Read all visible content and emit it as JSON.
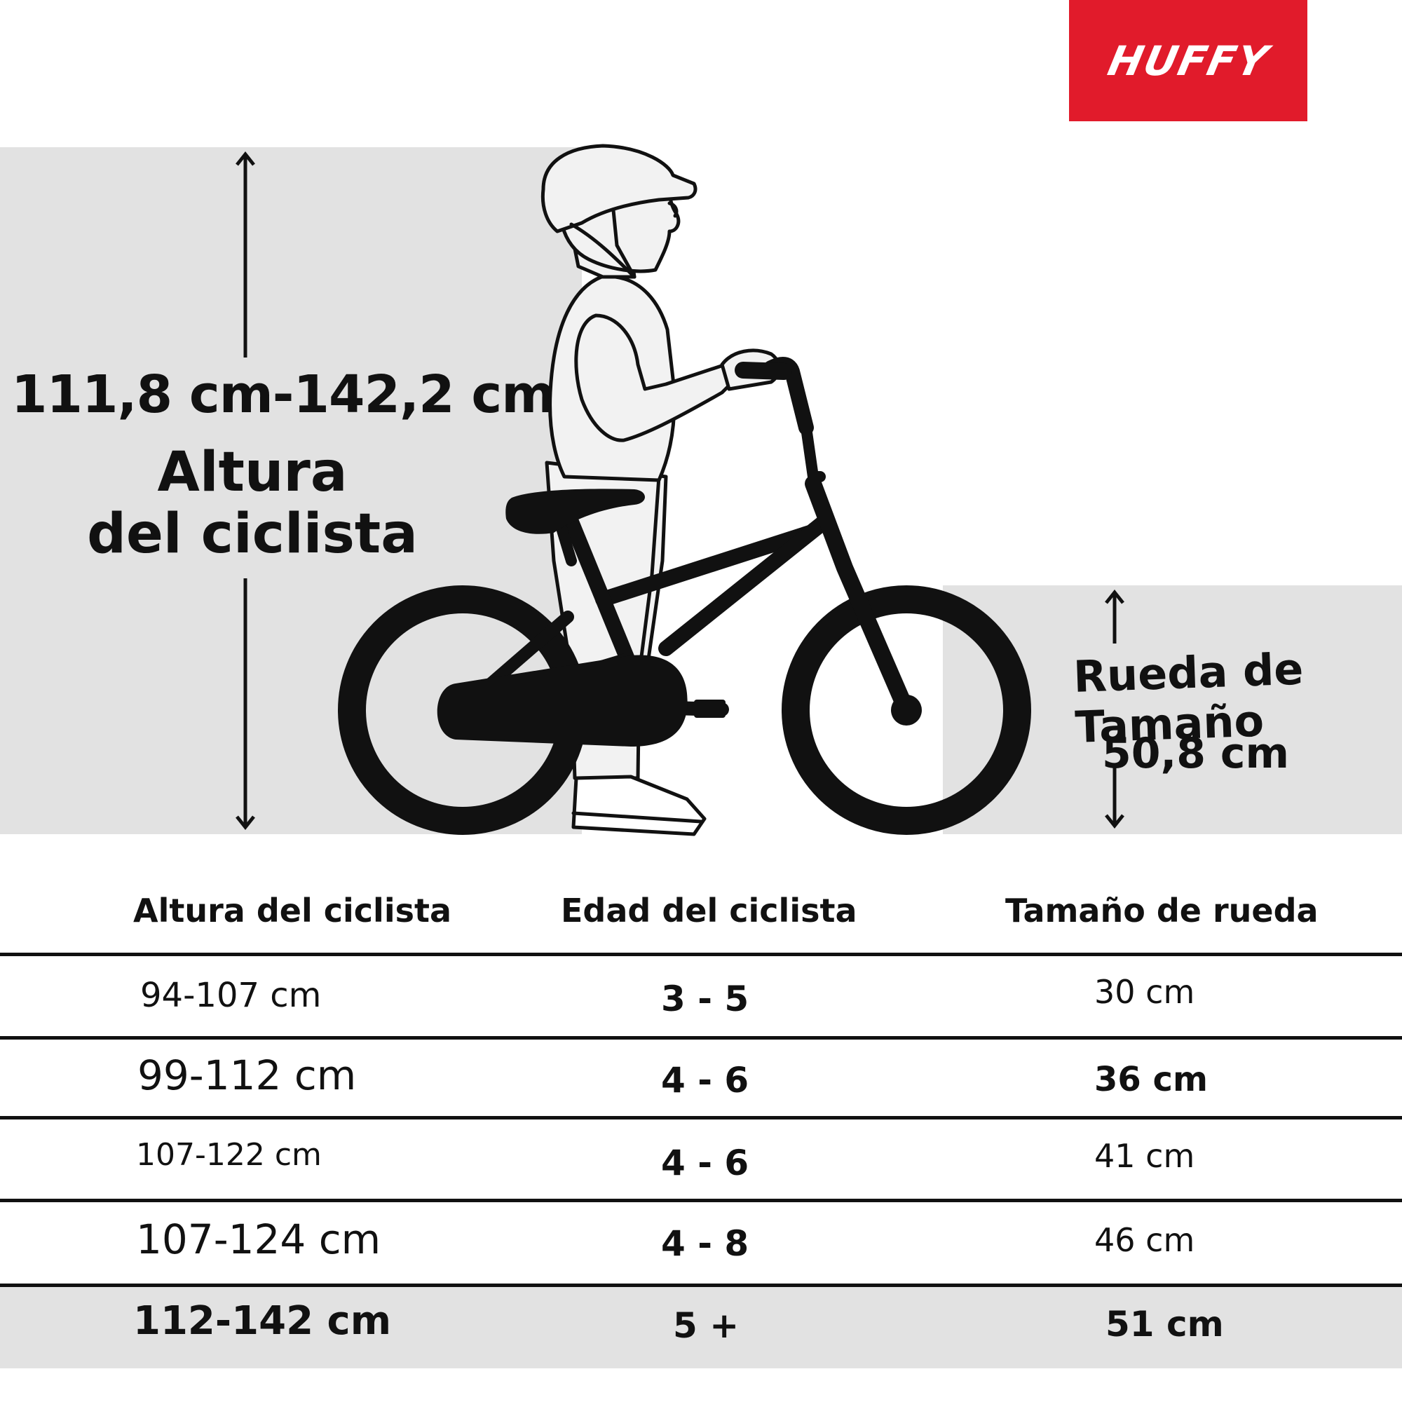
{
  "brand": {
    "logo_text": "HUFFY",
    "color": "#e11b2b"
  },
  "rider_height": {
    "value": "111,8 cm-142,2 cm",
    "label_line1": "Altura",
    "label_line2": "del ciclista"
  },
  "wheel": {
    "label": "Rueda de Tamaño",
    "value": "50,8 cm"
  },
  "table": {
    "headers": [
      "Altura del ciclista",
      "Edad del ciclista",
      "Tamaño de rueda"
    ],
    "rows": [
      [
        "94-107 cm",
        "3 - 5",
        "30 cm"
      ],
      [
        "99-112 cm",
        "4 - 6",
        "36 cm"
      ],
      [
        "107-122 cm",
        "4 - 6",
        "41 cm"
      ],
      [
        "107-124 cm",
        "4 - 8",
        "46 cm"
      ],
      [
        "112-142 cm",
        "5 +",
        "51 cm"
      ]
    ]
  },
  "colors": {
    "panel": "#e2e2e2",
    "ink": "#111111",
    "background": "#ffffff"
  }
}
